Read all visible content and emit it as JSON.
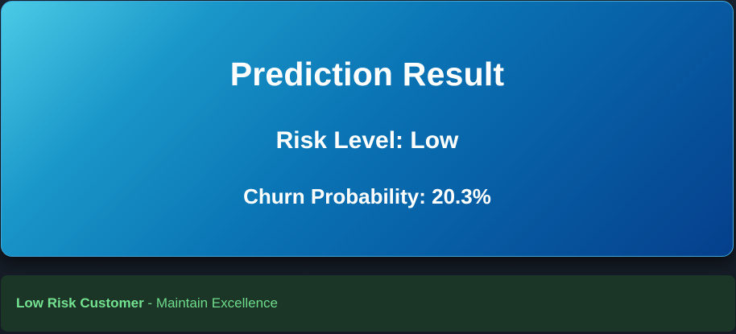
{
  "result": {
    "title": "Prediction Result",
    "risk_level": "Risk Level: Low",
    "churn_probability": "Churn Probability: 20.3%"
  },
  "advice": {
    "label": "Low Risk Customer",
    "separator": " - ",
    "message": "Maintain Excellence"
  },
  "colors": {
    "card_gradient_start": "#4ccbe6",
    "card_gradient_end": "#053f8c",
    "advice_background": "#1b3527",
    "advice_text": "#6fdc8c"
  }
}
